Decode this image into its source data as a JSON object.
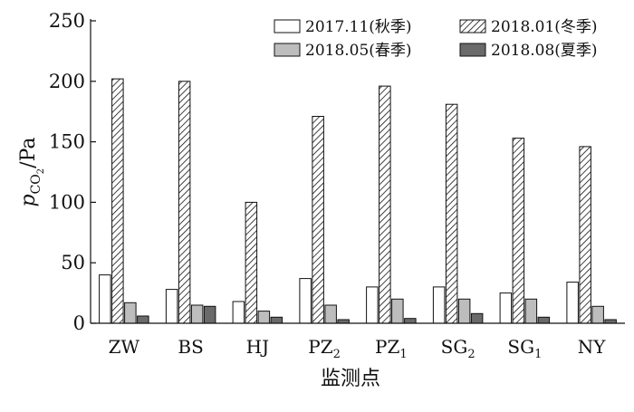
{
  "chart_data": {
    "type": "bar",
    "categories": [
      "ZW",
      "BS",
      "HJ",
      "PZ2",
      "PZ1",
      "SG2",
      "SG1",
      "NY"
    ],
    "category_labels": [
      {
        "base": "ZW",
        "sub": ""
      },
      {
        "base": "BS",
        "sub": ""
      },
      {
        "base": "HJ",
        "sub": ""
      },
      {
        "base": "PZ",
        "sub": "2"
      },
      {
        "base": "PZ",
        "sub": "1"
      },
      {
        "base": "SG",
        "sub": "2"
      },
      {
        "base": "SG",
        "sub": "1"
      },
      {
        "base": "NY",
        "sub": ""
      }
    ],
    "series": [
      {
        "name": "2017.11(秋季)",
        "fill": "#ffffff",
        "pattern": "none",
        "values": [
          40,
          28,
          18,
          37,
          30,
          30,
          25,
          34
        ]
      },
      {
        "name": "2018.01(冬季)",
        "fill": "#ffffff",
        "pattern": "hatch",
        "values": [
          202,
          200,
          100,
          171,
          196,
          181,
          153,
          146
        ]
      },
      {
        "name": "2018.05(春季)",
        "fill": "#bdbdbd",
        "pattern": "none",
        "values": [
          17,
          15,
          10,
          15,
          20,
          20,
          20,
          14
        ]
      },
      {
        "name": "2018.08(夏季)",
        "fill": "#6a6a6a",
        "pattern": "none",
        "values": [
          6,
          14,
          5,
          3,
          4,
          8,
          5,
          3
        ]
      }
    ],
    "ylabel": {
      "p": "p",
      "sub": "CO",
      "subsub": "2",
      "unit": "/Pa"
    },
    "xlabel": "监测点",
    "ylim": [
      0,
      250
    ],
    "yticks": [
      0,
      50,
      100,
      150,
      200,
      250
    ],
    "grid": false,
    "legend_placement": "top-right"
  }
}
